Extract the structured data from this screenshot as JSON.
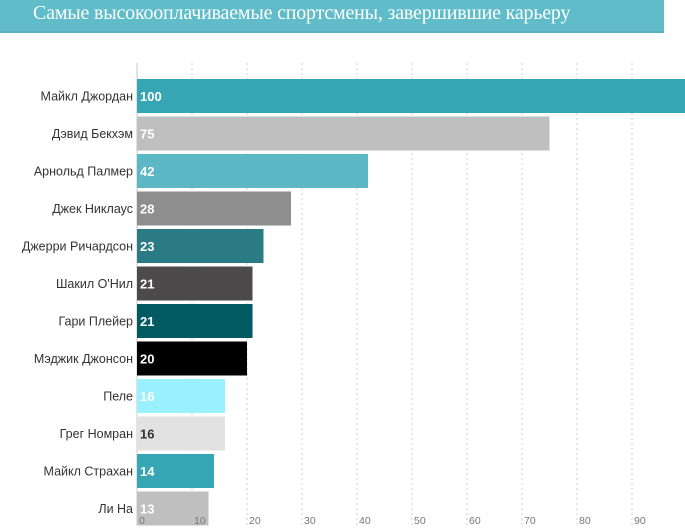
{
  "header": {
    "title": "Самые высокооплачиваемые спортсмены, завершившие карьеру"
  },
  "chart_data": {
    "type": "bar",
    "orientation": "horizontal",
    "title": "Самые высокооплачиваемые спортсмены, завершившие карьеру",
    "xlabel": "",
    "ylabel": "",
    "xlim": [
      0,
      100
    ],
    "grid": true,
    "categories": [
      "Майкл Джордан",
      "Дэвид Бекхэм",
      "Арнольд Палмер",
      "Джек Никлаус",
      "Джерри Ричардсон",
      "Шакил О'Нил",
      "Гари Плейер",
      "Мэджик Джонсон",
      "Пеле",
      "Грег Номран",
      "Майкл Страхан",
      "Ли На"
    ],
    "values": [
      100,
      75,
      42,
      28,
      23,
      21,
      21,
      20,
      16,
      16,
      14,
      13
    ],
    "value_labels": [
      "100",
      "75",
      "42",
      "28",
      "23",
      "21",
      "21",
      "20",
      "16",
      "16",
      "14",
      "13"
    ],
    "colors": [
      "#36a6b4",
      "#bfbfbf",
      "#5db8c6",
      "#8e8e8e",
      "#2a7b83",
      "#4c4a4b",
      "#005a61",
      "#000000",
      "#9bf0ff",
      "#e2e2e2",
      "#36a6b4",
      "#bfbfbf"
    ],
    "label_colors": [
      "#ffffff",
      "#ffffff",
      "#ffffff",
      "#ffffff",
      "#ffffff",
      "#ffffff",
      "#ffffff",
      "#ffffff",
      "#ffffff",
      "#333333",
      "#ffffff",
      "#ffffff"
    ],
    "x_ticks": [
      0,
      10,
      20,
      30,
      40,
      50,
      60,
      70,
      80,
      90
    ],
    "x_tick_labels": [
      "0",
      "10",
      "20",
      "30",
      "40",
      "50",
      "60",
      "70",
      "80",
      "90"
    ]
  }
}
